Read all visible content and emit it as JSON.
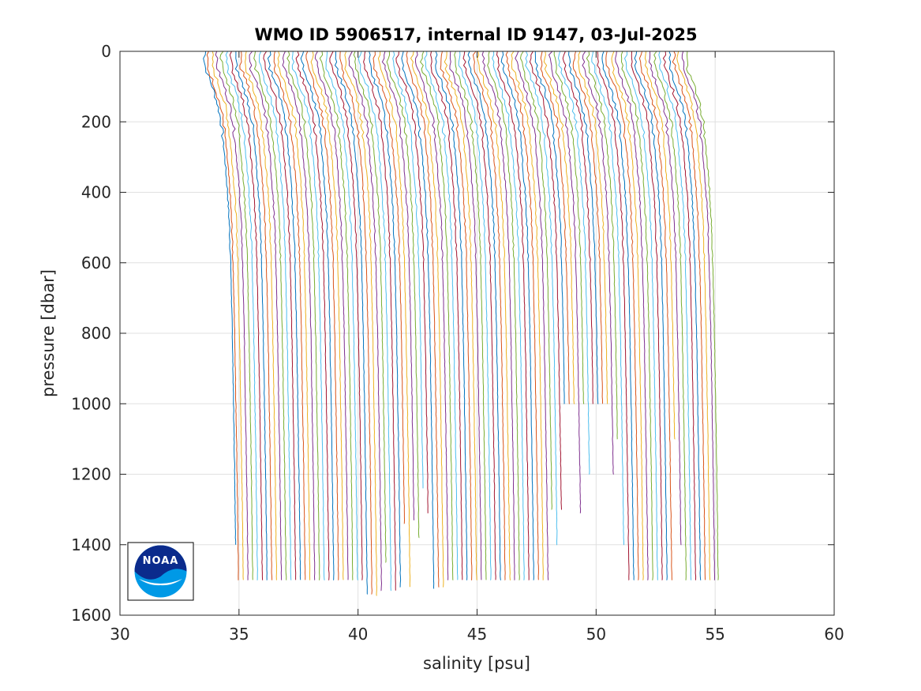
{
  "chart_data": {
    "type": "line",
    "title": "WMO ID 5906517, internal ID 9147, 03-Jul-2025",
    "xlabel": "salinity [psu]",
    "ylabel": "pressure [dbar]",
    "xlim": [
      30,
      60
    ],
    "ylim": [
      0,
      1600
    ],
    "y_reversed": true,
    "grid": true,
    "xticks": [
      30,
      35,
      40,
      45,
      50,
      55,
      60
    ],
    "yticks": [
      0,
      200,
      400,
      600,
      800,
      1000,
      1200,
      1400,
      1600
    ],
    "colors": [
      "#0072BD",
      "#D95319",
      "#EDB120",
      "#7E2F8E",
      "#77AC30",
      "#4DBEEE",
      "#A2142F"
    ],
    "profile_shape": {
      "pressure": [
        0,
        20,
        50,
        100,
        150,
        200,
        300,
        400,
        500,
        600,
        800,
        1000,
        1200,
        1400,
        1500
      ],
      "salinity_offset": [
        0.0,
        -0.05,
        0.0,
        0.28,
        0.5,
        0.65,
        0.8,
        0.92,
        1.0,
        1.05,
        1.12,
        1.17,
        1.22,
        1.26,
        1.28
      ]
    },
    "series": [
      {
        "s0": 33.6,
        "pmax": 1400
      },
      {
        "s0": 33.7,
        "pmax": 1500
      },
      {
        "s0": 33.9,
        "pmax": 1500
      },
      {
        "s0": 34.1,
        "pmax": 1500
      },
      {
        "s0": 34.3,
        "pmax": 1500
      },
      {
        "s0": 34.5,
        "pmax": 1500
      },
      {
        "s0": 34.7,
        "pmax": 1500
      },
      {
        "s0": 34.9,
        "pmax": 1500
      },
      {
        "s0": 35.1,
        "pmax": 1500
      },
      {
        "s0": 35.3,
        "pmax": 1500
      },
      {
        "s0": 35.5,
        "pmax": 1500
      },
      {
        "s0": 35.7,
        "pmax": 1500
      },
      {
        "s0": 35.9,
        "pmax": 1500
      },
      {
        "s0": 36.1,
        "pmax": 1500
      },
      {
        "s0": 36.3,
        "pmax": 1500
      },
      {
        "s0": 36.5,
        "pmax": 1500
      },
      {
        "s0": 36.7,
        "pmax": 1500
      },
      {
        "s0": 36.9,
        "pmax": 1500
      },
      {
        "s0": 37.1,
        "pmax": 1500
      },
      {
        "s0": 37.3,
        "pmax": 1500
      },
      {
        "s0": 37.5,
        "pmax": 1500
      },
      {
        "s0": 37.7,
        "pmax": 1500
      },
      {
        "s0": 37.9,
        "pmax": 1500
      },
      {
        "s0": 38.1,
        "pmax": 1500
      },
      {
        "s0": 38.3,
        "pmax": 1500
      },
      {
        "s0": 38.5,
        "pmax": 1500
      },
      {
        "s0": 38.7,
        "pmax": 1500
      },
      {
        "s0": 38.9,
        "pmax": 1500
      },
      {
        "s0": 39.1,
        "pmax": 1540
      },
      {
        "s0": 39.3,
        "pmax": 1540
      },
      {
        "s0": 39.5,
        "pmax": 1545
      },
      {
        "s0": 39.7,
        "pmax": 1530
      },
      {
        "s0": 39.9,
        "pmax": 1450
      },
      {
        "s0": 40.1,
        "pmax": 1530
      },
      {
        "s0": 40.3,
        "pmax": 1530
      },
      {
        "s0": 40.5,
        "pmax": 1520
      },
      {
        "s0": 40.7,
        "pmax": 1340
      },
      {
        "s0": 40.9,
        "pmax": 1520
      },
      {
        "s0": 41.1,
        "pmax": 1330
      },
      {
        "s0": 41.3,
        "pmax": 1380
      },
      {
        "s0": 41.5,
        "pmax": 1240
      },
      {
        "s0": 41.7,
        "pmax": 1310
      },
      {
        "s0": 41.9,
        "pmax": 1525
      },
      {
        "s0": 42.1,
        "pmax": 1520
      },
      {
        "s0": 42.3,
        "pmax": 1520
      },
      {
        "s0": 42.5,
        "pmax": 1500
      },
      {
        "s0": 42.7,
        "pmax": 1500
      },
      {
        "s0": 42.9,
        "pmax": 1500
      },
      {
        "s0": 43.1,
        "pmax": 1500
      },
      {
        "s0": 43.3,
        "pmax": 1500
      },
      {
        "s0": 43.5,
        "pmax": 1500
      },
      {
        "s0": 43.7,
        "pmax": 1500
      },
      {
        "s0": 43.9,
        "pmax": 1500
      },
      {
        "s0": 44.1,
        "pmax": 1500
      },
      {
        "s0": 44.3,
        "pmax": 1500
      },
      {
        "s0": 44.5,
        "pmax": 1500
      },
      {
        "s0": 44.7,
        "pmax": 1500
      },
      {
        "s0": 44.9,
        "pmax": 1500
      },
      {
        "s0": 45.1,
        "pmax": 1500
      },
      {
        "s0": 45.3,
        "pmax": 1500
      },
      {
        "s0": 45.5,
        "pmax": 1500
      },
      {
        "s0": 45.7,
        "pmax": 1500
      },
      {
        "s0": 45.9,
        "pmax": 1500
      },
      {
        "s0": 46.1,
        "pmax": 1500
      },
      {
        "s0": 46.3,
        "pmax": 1500
      },
      {
        "s0": 46.5,
        "pmax": 1500
      },
      {
        "s0": 46.7,
        "pmax": 1500
      },
      {
        "s0": 46.9,
        "pmax": 1300
      },
      {
        "s0": 47.1,
        "pmax": 1400
      },
      {
        "s0": 47.3,
        "pmax": 1300
      },
      {
        "s0": 47.5,
        "pmax": 1000
      },
      {
        "s0": 47.7,
        "pmax": 1000
      },
      {
        "s0": 47.9,
        "pmax": 1000
      },
      {
        "s0": 48.1,
        "pmax": 1310
      },
      {
        "s0": 48.3,
        "pmax": 1000
      },
      {
        "s0": 48.5,
        "pmax": 1200
      },
      {
        "s0": 48.7,
        "pmax": 1000
      },
      {
        "s0": 48.9,
        "pmax": 1000
      },
      {
        "s0": 49.1,
        "pmax": 1000
      },
      {
        "s0": 49.3,
        "pmax": 1000
      },
      {
        "s0": 49.5,
        "pmax": 1200
      },
      {
        "s0": 49.7,
        "pmax": 1100
      },
      {
        "s0": 49.9,
        "pmax": 1400
      },
      {
        "s0": 50.1,
        "pmax": 1500
      },
      {
        "s0": 50.3,
        "pmax": 1500
      },
      {
        "s0": 50.5,
        "pmax": 1500
      },
      {
        "s0": 50.7,
        "pmax": 1500
      },
      {
        "s0": 50.9,
        "pmax": 1500
      },
      {
        "s0": 51.1,
        "pmax": 1500
      },
      {
        "s0": 51.3,
        "pmax": 1500
      },
      {
        "s0": 51.5,
        "pmax": 1500
      },
      {
        "s0": 51.7,
        "pmax": 1500
      },
      {
        "s0": 51.9,
        "pmax": 1500
      },
      {
        "s0": 52.1,
        "pmax": 1100
      },
      {
        "s0": 52.3,
        "pmax": 1400
      },
      {
        "s0": 52.5,
        "pmax": 1500
      },
      {
        "s0": 52.7,
        "pmax": 1500
      },
      {
        "s0": 52.9,
        "pmax": 1500
      },
      {
        "s0": 53.1,
        "pmax": 1500
      },
      {
        "s0": 53.3,
        "pmax": 1500
      },
      {
        "s0": 53.5,
        "pmax": 1500
      },
      {
        "s0": 53.7,
        "pmax": 1500
      },
      {
        "s0": 53.85,
        "pmax": 1500
      }
    ]
  },
  "logo": {
    "text": "NOAA"
  }
}
